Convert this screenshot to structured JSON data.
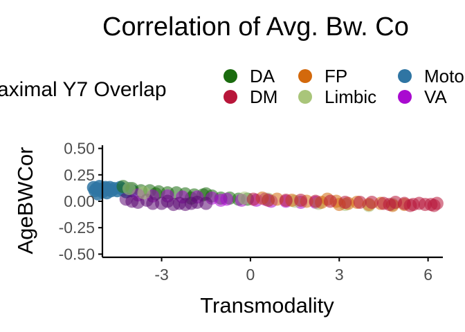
{
  "chart_data": {
    "type": "scatter",
    "title": "Correlation of Avg. Bw. Co",
    "xlabel": "Transmodality",
    "ylabel": "AgeBWCor",
    "xlim": [
      -5.0,
      6.5
    ],
    "ylim": [
      -0.53,
      0.53
    ],
    "x_ticks": [
      -3,
      0,
      3,
      6
    ],
    "x_tick_labels": [
      "-3",
      "0",
      "3",
      "6"
    ],
    "y_ticks": [
      0.5,
      0.25,
      0.0,
      -0.25,
      -0.5
    ],
    "y_tick_labels": [
      "0.50",
      "0.25",
      "0.00",
      "-0.25",
      "-0.50"
    ],
    "grid": false,
    "legend": {
      "title": "aximal Y7 Overlap",
      "placement": "top",
      "entries": [
        {
          "label": "DA",
          "color": "#1a6b0e"
        },
        {
          "label": "DM",
          "color": "#b8163a"
        },
        {
          "label": "FP",
          "color": "#d3690c"
        },
        {
          "label": "Limbic",
          "color": "#a9c57a"
        },
        {
          "label": "Moto",
          "color": "#2f75a3"
        },
        {
          "label": "VA",
          "color": "#a90ad0"
        }
      ]
    },
    "series": [
      {
        "name": "Moto",
        "color": "#2f75a3",
        "points": [
          [
            -5.3,
            0.13
          ],
          [
            -5.25,
            0.1
          ],
          [
            -5.2,
            0.12
          ],
          [
            -5.15,
            0.07
          ],
          [
            -5.1,
            0.14
          ],
          [
            -5.05,
            0.11
          ],
          [
            -5.0,
            0.09
          ],
          [
            -4.95,
            0.12
          ],
          [
            -4.9,
            0.13
          ],
          [
            -4.85,
            0.08
          ],
          [
            -4.8,
            0.11
          ],
          [
            -4.75,
            0.13
          ],
          [
            -4.7,
            0.1
          ],
          [
            -4.6,
            0.12
          ],
          [
            -4.5,
            0.1
          ],
          [
            -4.4,
            0.13
          ],
          [
            -4.3,
            0.11
          ],
          [
            -4.2,
            0.09
          ],
          [
            -4.1,
            0.12
          ],
          [
            -4.0,
            0.1
          ]
        ]
      },
      {
        "name": "DA",
        "color": "#1a6b0e",
        "points": [
          [
            -4.3,
            0.14
          ],
          [
            -4.0,
            0.12
          ],
          [
            -3.7,
            0.1
          ],
          [
            -3.4,
            0.1
          ],
          [
            -3.1,
            0.09
          ],
          [
            -2.8,
            0.08
          ],
          [
            -2.5,
            0.08
          ],
          [
            -2.2,
            0.07
          ],
          [
            -1.9,
            0.06
          ],
          [
            -1.6,
            0.06
          ],
          [
            -1.3,
            0.05
          ],
          [
            -1.0,
            0.03
          ],
          [
            -0.7,
            0.03
          ],
          [
            -0.4,
            0.02
          ],
          [
            -0.1,
            0.02
          ],
          [
            -2.0,
            0.03
          ],
          [
            -1.5,
            0.07
          ],
          [
            -3.2,
            0.07
          ]
        ]
      },
      {
        "name": "VA",
        "color": "#a90ad0",
        "points": [
          [
            -3.8,
            0.06
          ],
          [
            -3.3,
            0.05
          ],
          [
            -2.8,
            0.05
          ],
          [
            -2.3,
            0.04
          ],
          [
            -1.8,
            0.04
          ],
          [
            -1.3,
            0.03
          ],
          [
            -0.8,
            0.02
          ],
          [
            -0.3,
            0.01
          ],
          [
            0.2,
            0.01
          ],
          [
            0.7,
            0.0
          ],
          [
            1.2,
            0.0
          ],
          [
            1.7,
            -0.01
          ],
          [
            2.2,
            -0.01
          ],
          [
            -1.0,
            0.01
          ],
          [
            0.5,
            0.02
          ]
        ]
      },
      {
        "name": "VA",
        "color": "#5b0a73",
        "points": [
          [
            -4.2,
            0.02
          ],
          [
            -4.0,
            0.0
          ],
          [
            -3.8,
            -0.01
          ],
          [
            -3.5,
            0.01
          ],
          [
            -3.3,
            -0.02
          ],
          [
            -3.0,
            -0.02
          ],
          [
            -2.8,
            0.0
          ],
          [
            -2.6,
            -0.03
          ],
          [
            -2.4,
            -0.02
          ],
          [
            -2.2,
            -0.03
          ],
          [
            -2.0,
            -0.02
          ],
          [
            -1.8,
            -0.01
          ],
          [
            -1.5,
            -0.02
          ]
        ]
      },
      {
        "name": "Limbic",
        "color": "#a9c57a",
        "points": [
          [
            -4.1,
            0.12
          ],
          [
            -3.6,
            0.08
          ],
          [
            -0.2,
            0.03
          ],
          [
            0.6,
            0.02
          ],
          [
            1.5,
            0.0
          ],
          [
            2.3,
            -0.02
          ],
          [
            3.2,
            -0.03
          ],
          [
            4.0,
            -0.04
          ],
          [
            4.8,
            -0.03
          ]
        ]
      },
      {
        "name": "FP",
        "color": "#d3690c",
        "points": [
          [
            0.4,
            0.03
          ],
          [
            0.9,
            0.02
          ],
          [
            1.4,
            0.01
          ],
          [
            1.9,
            0.0
          ],
          [
            2.4,
            -0.01
          ],
          [
            2.9,
            0.0
          ],
          [
            3.3,
            -0.02
          ],
          [
            3.6,
            -0.01
          ],
          [
            4.0,
            -0.03
          ],
          [
            4.4,
            -0.02
          ],
          [
            4.8,
            -0.04
          ],
          [
            5.2,
            -0.03
          ],
          [
            2.6,
            0.02
          ],
          [
            3.0,
            -0.03
          ]
        ]
      },
      {
        "name": "DM",
        "color": "#b8163a",
        "points": [
          [
            0.1,
            0.02
          ],
          [
            0.6,
            0.01
          ],
          [
            1.2,
            0.01
          ],
          [
            1.7,
            0.01
          ],
          [
            2.2,
            0.0
          ],
          [
            2.7,
            0.0
          ],
          [
            3.2,
            -0.01
          ],
          [
            3.7,
            -0.01
          ],
          [
            4.1,
            -0.01
          ],
          [
            4.5,
            -0.02
          ],
          [
            4.9,
            -0.01
          ],
          [
            5.2,
            -0.02
          ],
          [
            5.5,
            -0.03
          ],
          [
            5.7,
            -0.02
          ],
          [
            5.9,
            -0.03
          ],
          [
            6.1,
            -0.03
          ],
          [
            6.2,
            -0.04
          ],
          [
            6.3,
            -0.02
          ],
          [
            5.4,
            -0.04
          ],
          [
            4.7,
            -0.03
          ]
        ]
      }
    ]
  }
}
